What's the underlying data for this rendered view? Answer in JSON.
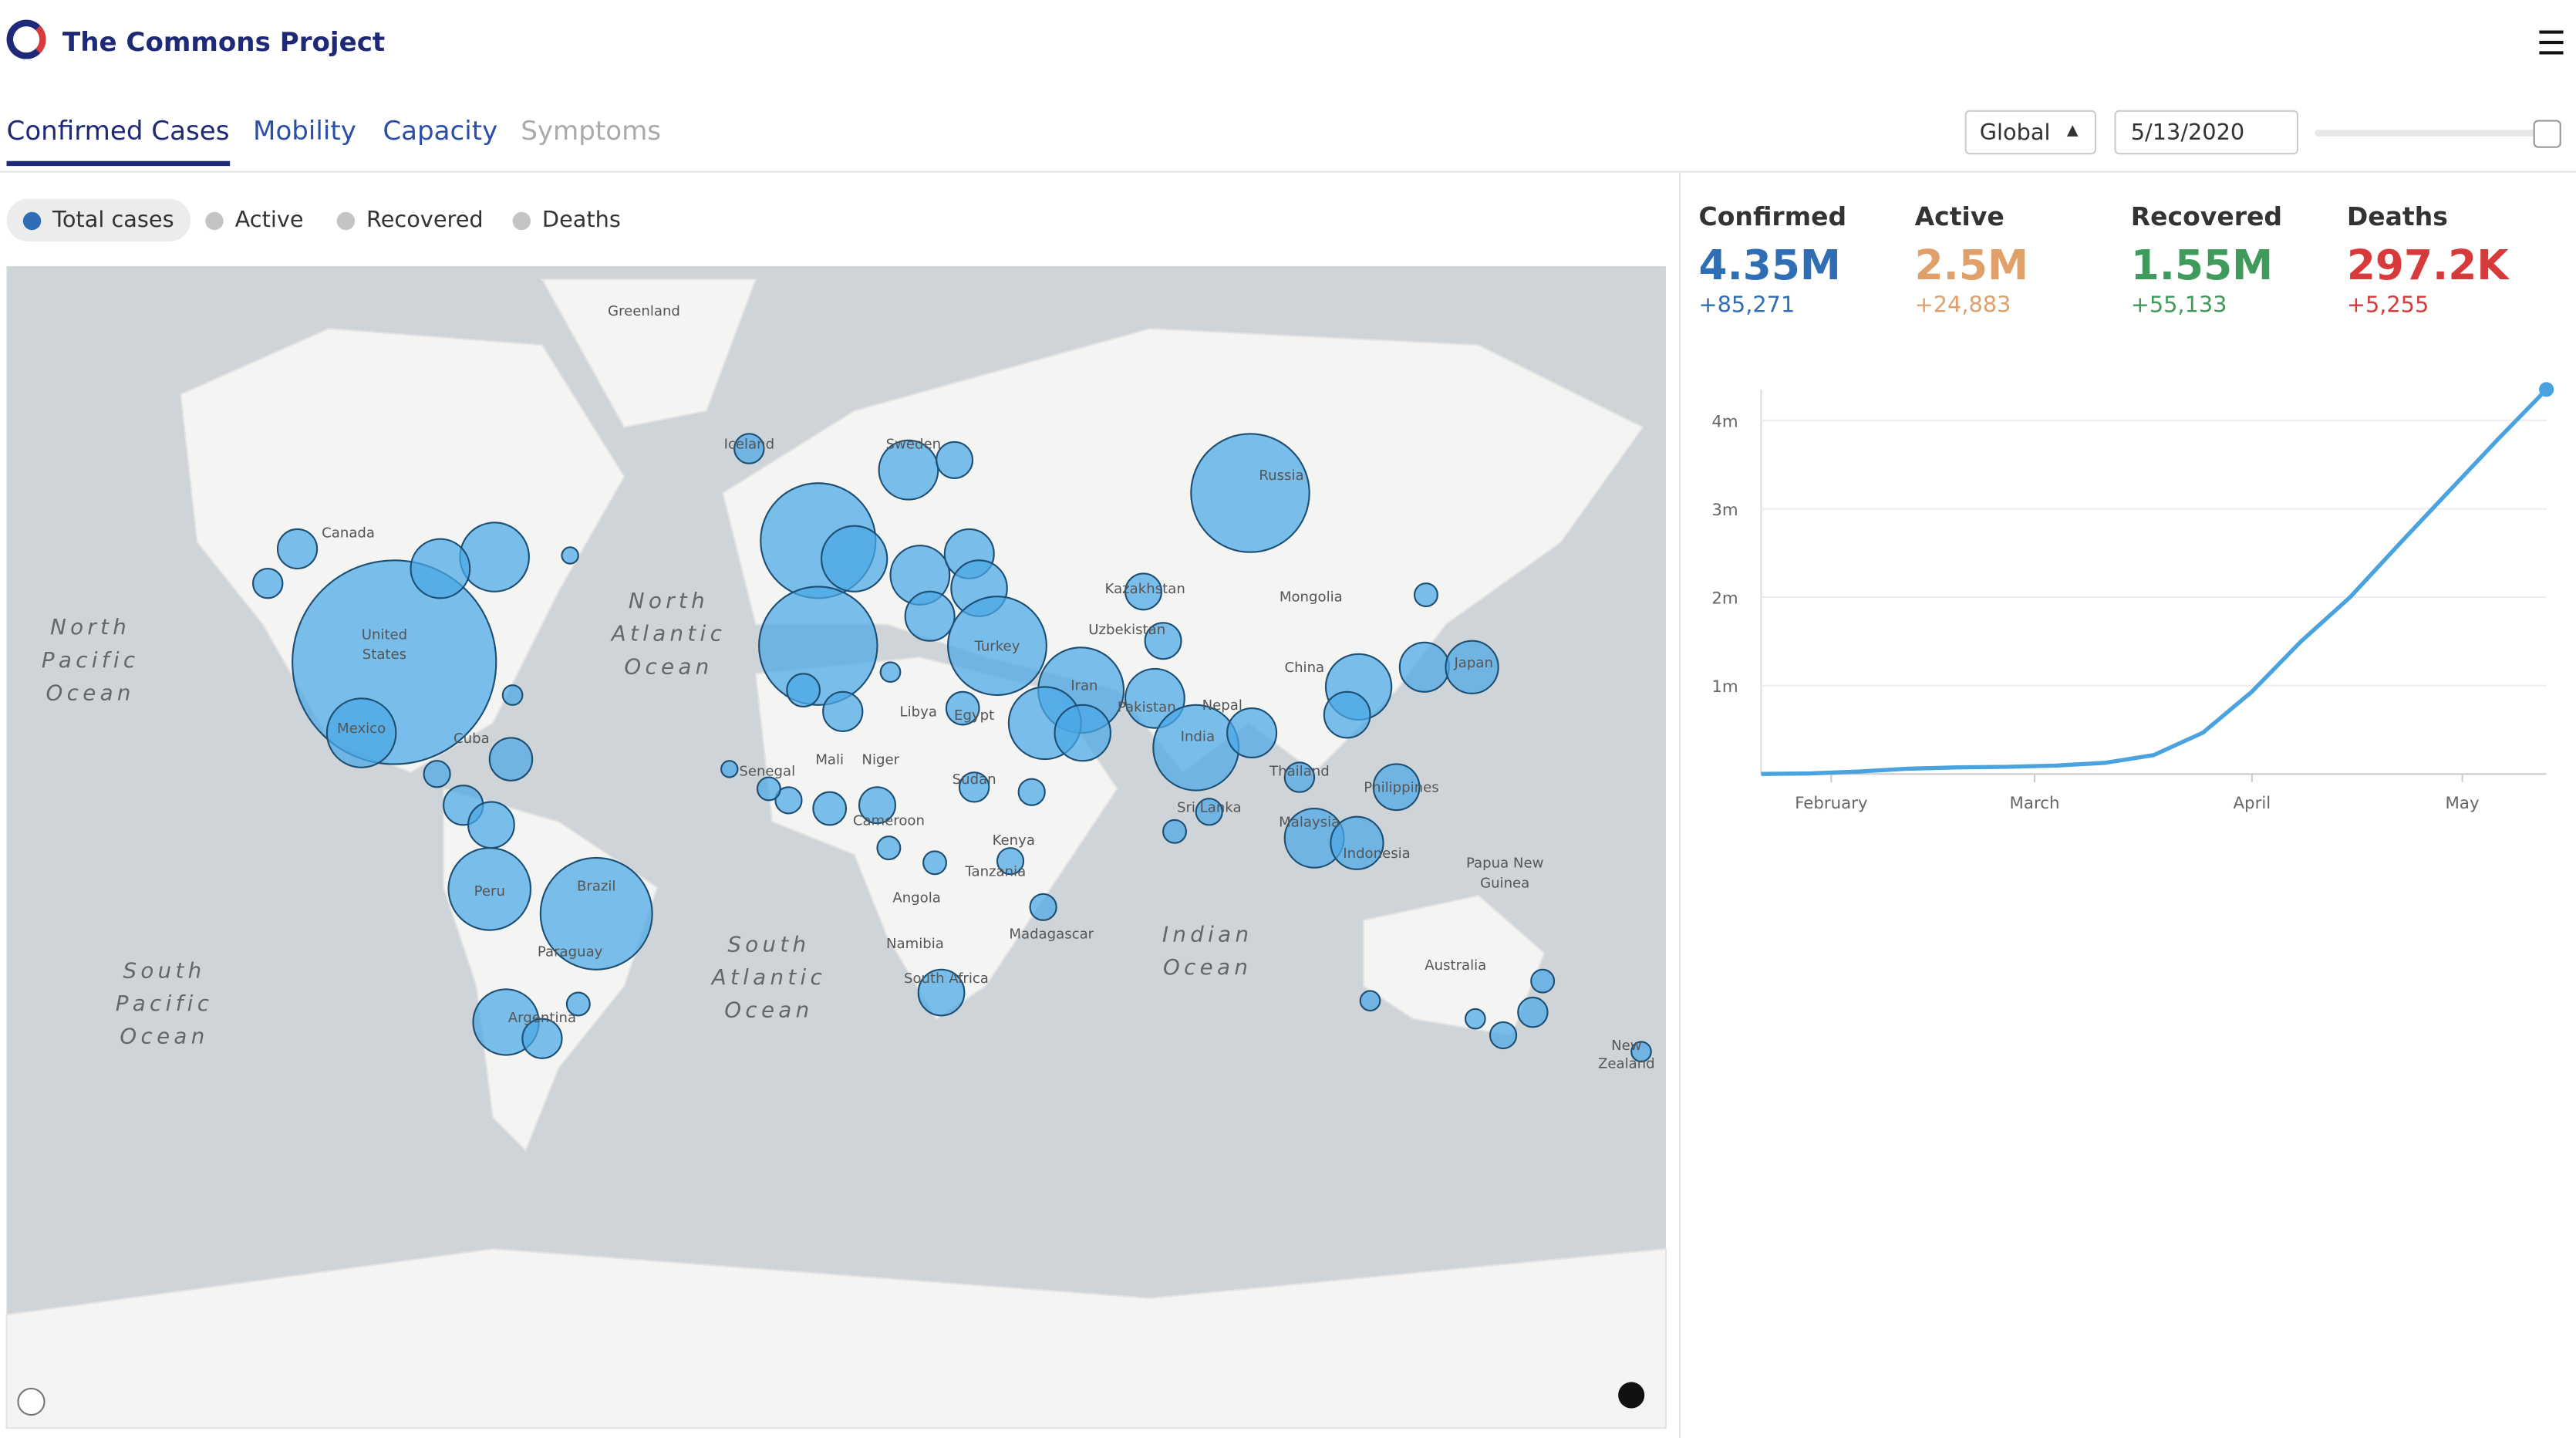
{
  "header": {
    "title": "The Commons Project"
  },
  "tabs": [
    "Confirmed Cases",
    "Mobility",
    "Capacity",
    "Symptoms"
  ],
  "controls": {
    "region": "Global",
    "date": "5/13/2020"
  },
  "toggles": [
    "Total cases",
    "Active",
    "Recovered",
    "Deaths"
  ],
  "stats": [
    {
      "label": "Confirmed",
      "value": "4.35M",
      "change": "+85,271",
      "color": "#2f6db5"
    },
    {
      "label": "Active",
      "value": "2.5M",
      "change": "+24,883",
      "color": "#e0a06a"
    },
    {
      "label": "Recovered",
      "value": "1.55M",
      "change": "+55,133",
      "color": "#3f9a5b"
    },
    {
      "label": "Deaths",
      "value": "297.2K",
      "change": "+5,255",
      "color": "#d63a3a"
    }
  ],
  "map": {
    "labels": [
      "Greenland",
      "Canada",
      "United",
      "States",
      "Mexico",
      "Cuba",
      "Peru",
      "Brazil",
      "Paraguay",
      "Argentina",
      "Iceland",
      "Sweden",
      "Russia",
      "Kazakhstan",
      "Mongolia",
      "Uzbekistan",
      "Turkey",
      "Iran",
      "Pakistan",
      "India",
      "China",
      "Japan",
      "Thailand",
      "Philippines",
      "Malaysia",
      "Indonesia",
      "Libya",
      "Egypt",
      "Mali",
      "Niger",
      "Senegal",
      "Sudan",
      "Cameroon",
      "Kenya",
      "Tanzania",
      "Angola",
      "Namibia",
      "South Africa",
      "Madagascar",
      "Sri Lanka",
      "Nepal",
      "Papua New",
      "Guinea",
      "Australia",
      "New",
      "Zealand"
    ],
    "oceans": [
      [
        "North",
        "Pacific",
        "Ocean"
      ],
      [
        "North",
        "Atlantic",
        "Ocean"
      ],
      [
        "South",
        "Atlantic",
        "Ocean"
      ],
      [
        "Indian",
        "Ocean"
      ],
      [
        "South",
        "Pacific",
        "Ocean"
      ]
    ]
  },
  "chart_data": {
    "type": "line",
    "x": [
      0,
      7,
      14,
      21,
      28,
      35,
      42,
      49,
      56,
      63,
      70,
      77,
      84,
      91,
      98,
      105,
      112
    ],
    "series": [
      {
        "name": "Confirmed",
        "color": "#4aa3df",
        "values": [
          555,
          6000,
          28000,
          60000,
          75000,
          81000,
          95000,
          126000,
          214000,
          467000,
          932000,
          1500000,
          2000000,
          2600000,
          3190000,
          3780000,
          4350000
        ]
      }
    ],
    "xlim": [
      0,
      112
    ],
    "ylim": [
      0,
      4350000
    ],
    "xticks": [
      {
        "value": 10,
        "label": "February"
      },
      {
        "value": 39,
        "label": "March"
      },
      {
        "value": 70,
        "label": "April"
      },
      {
        "value": 100,
        "label": "May"
      }
    ],
    "yticks": [
      {
        "value": 1000000,
        "label": "1m"
      },
      {
        "value": 2000000,
        "label": "2m"
      },
      {
        "value": 3000000,
        "label": "3m"
      },
      {
        "value": 4000000,
        "label": "4m"
      }
    ],
    "grid": true
  }
}
